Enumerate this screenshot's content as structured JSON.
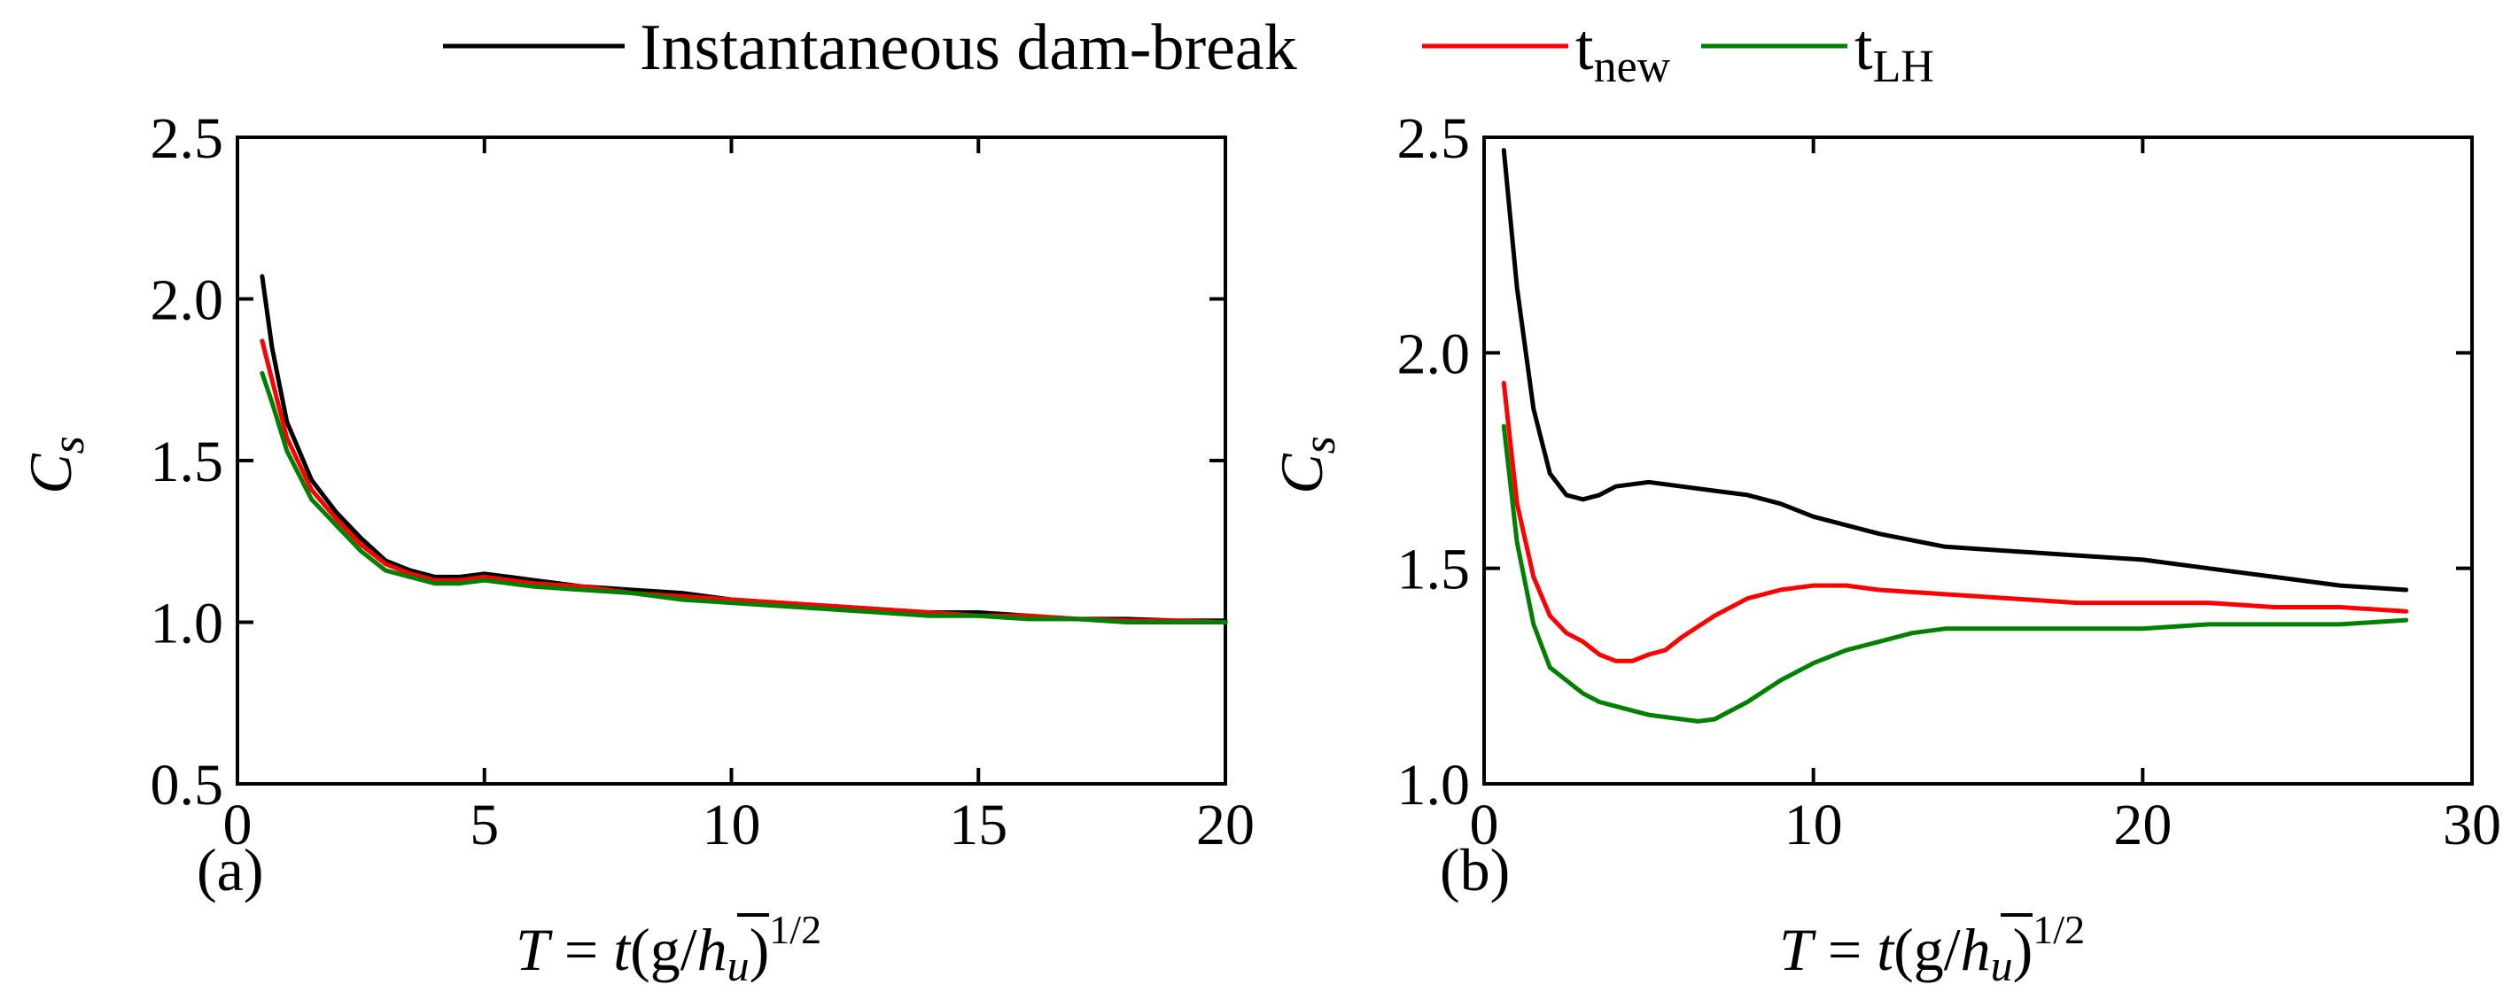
{
  "legend": {
    "items": [
      {
        "key": "instant",
        "main": "Instantaneous dam-break",
        "sub": "",
        "color": "#000000"
      },
      {
        "key": "new",
        "main": "t",
        "sub": "new",
        "color": "#ff0000"
      },
      {
        "key": "lh",
        "main": "t",
        "sub": "LH",
        "color": "#008000"
      }
    ]
  },
  "xlabel": {
    "lhs": "T",
    "eq": " = ",
    "t": "t",
    "open": "(g/",
    "hbar": "h",
    "u": "u",
    "close": ")",
    "exp": "1/2"
  },
  "ylabel": {
    "main": "C",
    "sub": "s"
  },
  "chart_data": [
    {
      "type": "line",
      "panel_label": "(a)",
      "xlim": [
        0,
        20
      ],
      "ylim": [
        0.5,
        2.5
      ],
      "xticks": [
        0,
        5,
        10,
        15,
        20
      ],
      "xtick_labels": [
        "0",
        "5",
        "10",
        "15",
        "20"
      ],
      "yticks": [
        0.5,
        1.0,
        1.5,
        2.0,
        2.5
      ],
      "ytick_labels": [
        "0.5",
        "1.0",
        "1.5",
        "2.0",
        "2.5"
      ],
      "series": [
        {
          "name": "Instantaneous dam-break",
          "color": "#000000",
          "x": [
            0.5,
            0.7,
            1.0,
            1.5,
            2.0,
            2.5,
            3.0,
            3.5,
            4.0,
            4.5,
            5.0,
            5.5,
            6.0,
            7.0,
            8.0,
            9.0,
            10.0,
            11.0,
            12.0,
            13.0,
            14.0,
            15.0,
            16.0,
            17.0,
            18.0,
            19.0,
            20.0
          ],
          "y": [
            2.07,
            1.85,
            1.62,
            1.44,
            1.34,
            1.26,
            1.19,
            1.16,
            1.14,
            1.14,
            1.15,
            1.14,
            1.13,
            1.11,
            1.1,
            1.09,
            1.07,
            1.06,
            1.05,
            1.04,
            1.03,
            1.03,
            1.02,
            1.01,
            1.01,
            1.005,
            1.005
          ]
        },
        {
          "name": "t_new",
          "color": "#ff0000",
          "x": [
            0.5,
            0.7,
            1.0,
            1.5,
            2.0,
            2.5,
            3.0,
            3.5,
            4.0,
            4.5,
            5.0,
            5.5,
            6.0,
            7.0,
            8.0,
            9.0,
            10.0,
            11.0,
            12.0,
            13.0,
            14.0,
            15.0,
            16.0,
            17.0,
            18.0,
            19.0,
            20.0
          ],
          "y": [
            1.87,
            1.75,
            1.57,
            1.41,
            1.32,
            1.24,
            1.18,
            1.15,
            1.13,
            1.13,
            1.14,
            1.13,
            1.12,
            1.11,
            1.09,
            1.08,
            1.07,
            1.06,
            1.05,
            1.04,
            1.03,
            1.02,
            1.02,
            1.01,
            1.005,
            1.005,
            1.0
          ]
        },
        {
          "name": "t_LH",
          "color": "#008000",
          "x": [
            0.5,
            0.7,
            1.0,
            1.5,
            2.0,
            2.5,
            3.0,
            3.5,
            4.0,
            4.5,
            5.0,
            5.5,
            6.0,
            7.0,
            8.0,
            9.0,
            10.0,
            11.0,
            12.0,
            13.0,
            14.0,
            15.0,
            16.0,
            17.0,
            18.0,
            19.0,
            20.0
          ],
          "y": [
            1.77,
            1.68,
            1.53,
            1.38,
            1.3,
            1.22,
            1.16,
            1.14,
            1.12,
            1.12,
            1.13,
            1.12,
            1.11,
            1.1,
            1.09,
            1.07,
            1.06,
            1.05,
            1.04,
            1.03,
            1.02,
            1.02,
            1.01,
            1.01,
            1.0,
            1.0,
            1.0
          ]
        }
      ]
    },
    {
      "type": "line",
      "panel_label": "(b)",
      "xlim": [
        0,
        30
      ],
      "ylim": [
        1.0,
        2.5
      ],
      "xticks": [
        0,
        10,
        20,
        30
      ],
      "xtick_labels": [
        "0",
        "10",
        "20",
        "30"
      ],
      "yticks": [
        1.0,
        1.5,
        2.0,
        2.5
      ],
      "ytick_labels": [
        "1.0",
        "1.5",
        "2.0",
        "2.5"
      ],
      "series": [
        {
          "name": "Instantaneous dam-break",
          "color": "#000000",
          "x": [
            0.6,
            1.0,
            1.5,
            2.0,
            2.5,
            3.0,
            3.5,
            4.0,
            5.0,
            6.0,
            7.0,
            8.0,
            9.0,
            10.0,
            12.0,
            14.0,
            16.0,
            18.0,
            20.0,
            22.0,
            24.0,
            26.0,
            28.0
          ],
          "y": [
            2.47,
            2.15,
            1.87,
            1.72,
            1.67,
            1.66,
            1.67,
            1.69,
            1.7,
            1.69,
            1.68,
            1.67,
            1.65,
            1.62,
            1.58,
            1.55,
            1.54,
            1.53,
            1.52,
            1.5,
            1.48,
            1.46,
            1.45
          ]
        },
        {
          "name": "t_new",
          "color": "#ff0000",
          "x": [
            0.6,
            1.0,
            1.5,
            2.0,
            2.5,
            3.0,
            3.5,
            4.0,
            4.5,
            5.0,
            5.5,
            6.0,
            7.0,
            8.0,
            9.0,
            10.0,
            11.0,
            12.0,
            14.0,
            16.0,
            18.0,
            20.0,
            22.0,
            24.0,
            26.0,
            28.0
          ],
          "y": [
            1.93,
            1.65,
            1.48,
            1.39,
            1.35,
            1.33,
            1.3,
            1.285,
            1.285,
            1.3,
            1.31,
            1.34,
            1.39,
            1.43,
            1.45,
            1.46,
            1.46,
            1.45,
            1.44,
            1.43,
            1.42,
            1.42,
            1.42,
            1.41,
            1.41,
            1.4
          ]
        },
        {
          "name": "t_LH",
          "color": "#008000",
          "x": [
            0.6,
            1.0,
            1.5,
            2.0,
            2.5,
            3.0,
            3.5,
            4.0,
            5.0,
            6.0,
            6.5,
            7.0,
            8.0,
            9.0,
            10.0,
            11.0,
            12.0,
            13.0,
            14.0,
            16.0,
            18.0,
            20.0,
            22.0,
            24.0,
            26.0,
            28.0
          ],
          "y": [
            1.83,
            1.56,
            1.37,
            1.27,
            1.24,
            1.21,
            1.19,
            1.18,
            1.16,
            1.15,
            1.145,
            1.15,
            1.19,
            1.24,
            1.28,
            1.31,
            1.33,
            1.35,
            1.36,
            1.36,
            1.36,
            1.36,
            1.37,
            1.37,
            1.37,
            1.38
          ]
        }
      ]
    }
  ]
}
